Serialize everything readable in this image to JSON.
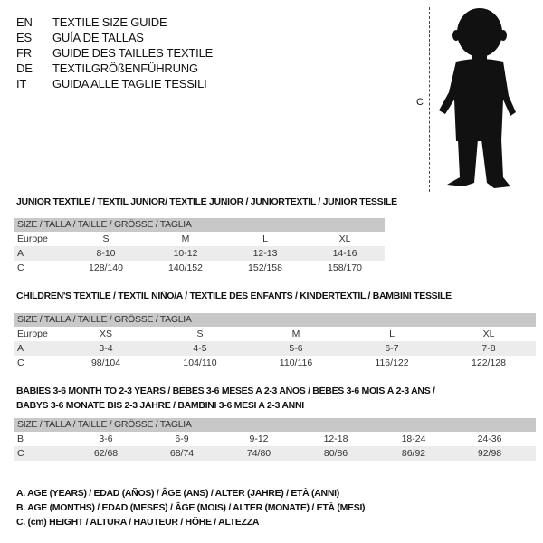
{
  "languages": [
    {
      "code": "EN",
      "title": "TEXTILE SIZE GUIDE"
    },
    {
      "code": "ES",
      "title": "GUÍA DE TALLAS"
    },
    {
      "code": "FR",
      "title": "GUIDE DES TAILLES TEXTILE"
    },
    {
      "code": "DE",
      "title": "TEXTILGRÖßENFÜHRUNG"
    },
    {
      "code": "IT",
      "title": "GUIDA ALLE TAGLIE TESSILI"
    }
  ],
  "figure": {
    "height_label": "C"
  },
  "size_header": "SIZE / TALLA / TAILLE / GRÖSSE / TAGLIA",
  "junior": {
    "title": "JUNIOR TEXTILE / TEXTIL JUNIOR/ TEXTILE JUNIOR / JUNIORTEXTIL / JUNIOR TESSILE",
    "rows": [
      {
        "label": "Europe",
        "cells": [
          "S",
          "M",
          "L",
          "XL"
        ]
      },
      {
        "label": "A",
        "cells": [
          "8-10",
          "10-12",
          "12-13",
          "14-16"
        ]
      },
      {
        "label": "C",
        "cells": [
          "128/140",
          "140/152",
          "152/158",
          "158/170"
        ]
      }
    ]
  },
  "children": {
    "title": "CHILDREN'S TEXTILE / TEXTIL NIÑO/A / TEXTILE DES ENFANTS / KINDERTEXTIL / BAMBINI TESSILE",
    "rows": [
      {
        "label": "Europe",
        "cells": [
          "XS",
          "S",
          "M",
          "L",
          "XL"
        ]
      },
      {
        "label": "A",
        "cells": [
          "3-4",
          "4-5",
          "5-6",
          "6-7",
          "7-8"
        ]
      },
      {
        "label": "C",
        "cells": [
          "98/104",
          "104/110",
          "110/116",
          "116/122",
          "122/128"
        ]
      }
    ]
  },
  "babies": {
    "title_line1": "BABIES 3-6 MONTH TO 2-3 YEARS / BEBÉS 3-6 MESES A 2-3 AÑOS / BÉBÉS 3-6 MOIS À 2-3 ANS /",
    "title_line2": "BABYS 3-6 MONATE BIS 2-3 JAHRE / BAMBINI 3-6 MESI A 2-3 ANNI",
    "rows": [
      {
        "label": "B",
        "cells": [
          "3-6",
          "6-9",
          "9-12",
          "12-18",
          "18-24",
          "24-36"
        ]
      },
      {
        "label": "C",
        "cells": [
          "62/68",
          "68/74",
          "74/80",
          "80/86",
          "86/92",
          "92/98"
        ]
      }
    ]
  },
  "legend": [
    "A. AGE (YEARS) / EDAD (AÑOS) / ÂGE (ANS) / ALTER (JAHRE) / ETÀ (ANNI)",
    "B. AGE (MONTHS) / EDAD (MESES) / ÂGE (MOIS) / ALTER (MONATE) / ETÀ (MESI)",
    "C. (cm) HEIGHT / ALTURA / HAUTEUR / HÖHE / ALTEZZA"
  ]
}
